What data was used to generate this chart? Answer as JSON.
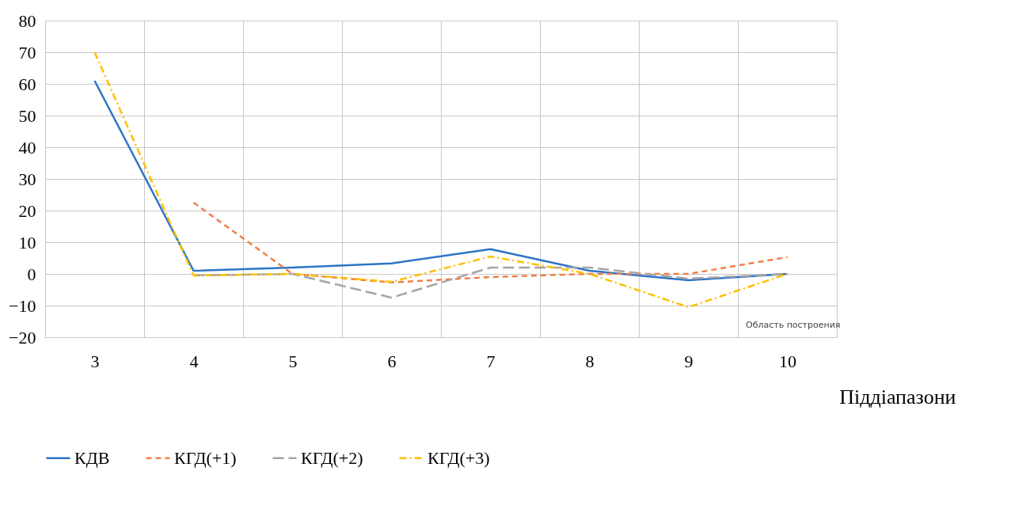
{
  "chart_data": {
    "type": "line",
    "xlabel": "Піддіапазони",
    "categories": [
      "3",
      "4",
      "5",
      "6",
      "7",
      "8",
      "9",
      "10"
    ],
    "series": [
      {
        "name": "КДВ",
        "color": "#2e75c6",
        "line_style": "solid",
        "values": [
          61,
          1,
          2,
          3.3,
          7.8,
          1,
          -2,
          0
        ]
      },
      {
        "name": "КГД(+1)",
        "color": "#f0804a",
        "line_style": "dashed",
        "values": [
          null,
          22.5,
          0,
          -2.7,
          -1,
          0,
          0,
          5.3
        ]
      },
      {
        "name": "КГД(+2)",
        "color": "#a5a5a5",
        "line_style": "dashed",
        "values": [
          null,
          -0.5,
          0,
          -7.5,
          2,
          2,
          -1.5,
          0
        ]
      },
      {
        "name": "КГД(+3)",
        "color": "#ffc000",
        "line_style": "dotted",
        "values": [
          70,
          -0.5,
          0,
          -2.5,
          5.5,
          0,
          -10.5,
          0
        ]
      }
    ],
    "ylim": [
      -20,
      80
    ],
    "yticks": [
      -20,
      -10,
      0,
      10,
      20,
      30,
      40,
      50,
      60,
      70,
      80
    ],
    "grid": true,
    "legend": "bottom",
    "marker": "none",
    "annotations": [
      "Область построения"
    ]
  }
}
